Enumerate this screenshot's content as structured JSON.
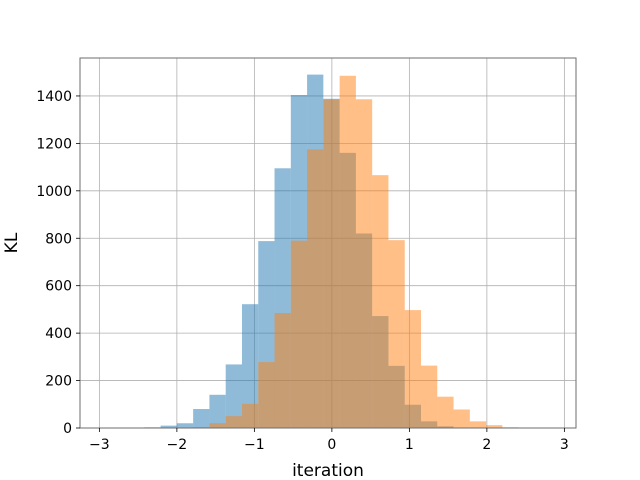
{
  "chart_data": {
    "type": "histogram",
    "title": "",
    "xlabel": "iteration",
    "ylabel": "KL",
    "xlim": [
      -3.25,
      3.15
    ],
    "ylim": [
      0,
      1560
    ],
    "xticks": [
      -3,
      -2,
      -1,
      0,
      1,
      2,
      3
    ],
    "xtick_labels": [
      "−3",
      "−2",
      "−1",
      "0",
      "1",
      "2",
      "3"
    ],
    "yticks": [
      0,
      200,
      400,
      600,
      800,
      1000,
      1200,
      1400
    ],
    "ytick_labels": [
      "0",
      "200",
      "400",
      "600",
      "800",
      "1000",
      "1200",
      "1400"
    ],
    "grid": true,
    "series": [
      {
        "color": "#1f77b4",
        "alpha": 0.5,
        "bins": [
          {
            "x0": -2.42,
            "x1": -2.21,
            "count": 3
          },
          {
            "x0": -2.21,
            "x1": -2.0,
            "count": 10
          },
          {
            "x0": -2.0,
            "x1": -1.79,
            "count": 20
          },
          {
            "x0": -1.79,
            "x1": -1.58,
            "count": 80
          },
          {
            "x0": -1.58,
            "x1": -1.37,
            "count": 140
          },
          {
            "x0": -1.37,
            "x1": -1.16,
            "count": 268
          },
          {
            "x0": -1.16,
            "x1": -0.95,
            "count": 522
          },
          {
            "x0": -0.95,
            "x1": -0.74,
            "count": 788
          },
          {
            "x0": -0.74,
            "x1": -0.53,
            "count": 1095
          },
          {
            "x0": -0.53,
            "x1": -0.32,
            "count": 1404
          },
          {
            "x0": -0.32,
            "x1": -0.11,
            "count": 1490
          },
          {
            "x0": -0.11,
            "x1": 0.1,
            "count": 1388
          },
          {
            "x0": 0.1,
            "x1": 0.31,
            "count": 1160
          },
          {
            "x0": 0.31,
            "x1": 0.52,
            "count": 820
          },
          {
            "x0": 0.52,
            "x1": 0.73,
            "count": 472
          },
          {
            "x0": 0.73,
            "x1": 0.94,
            "count": 262
          },
          {
            "x0": 0.94,
            "x1": 1.15,
            "count": 98
          },
          {
            "x0": 1.15,
            "x1": 1.36,
            "count": 28
          },
          {
            "x0": 1.36,
            "x1": 1.57,
            "count": 7
          },
          {
            "x0": 1.57,
            "x1": 1.78,
            "count": 2
          }
        ]
      },
      {
        "color": "#ff7f0e",
        "alpha": 0.5,
        "bins": [
          {
            "x0": -1.79,
            "x1": -1.58,
            "count": 4
          },
          {
            "x0": -1.58,
            "x1": -1.37,
            "count": 20
          },
          {
            "x0": -1.37,
            "x1": -1.16,
            "count": 50
          },
          {
            "x0": -1.16,
            "x1": -0.95,
            "count": 102
          },
          {
            "x0": -0.95,
            "x1": -0.74,
            "count": 278
          },
          {
            "x0": -0.74,
            "x1": -0.53,
            "count": 485
          },
          {
            "x0": -0.53,
            "x1": -0.32,
            "count": 790
          },
          {
            "x0": -0.32,
            "x1": -0.11,
            "count": 1175
          },
          {
            "x0": -0.11,
            "x1": 0.1,
            "count": 1385
          },
          {
            "x0": 0.1,
            "x1": 0.31,
            "count": 1485
          },
          {
            "x0": 0.31,
            "x1": 0.52,
            "count": 1386
          },
          {
            "x0": 0.52,
            "x1": 0.73,
            "count": 1066
          },
          {
            "x0": 0.73,
            "x1": 0.94,
            "count": 792
          },
          {
            "x0": 0.94,
            "x1": 1.15,
            "count": 497
          },
          {
            "x0": 1.15,
            "x1": 1.36,
            "count": 263
          },
          {
            "x0": 1.36,
            "x1": 1.57,
            "count": 132
          },
          {
            "x0": 1.57,
            "x1": 1.78,
            "count": 78
          },
          {
            "x0": 1.78,
            "x1": 1.99,
            "count": 28
          },
          {
            "x0": 1.99,
            "x1": 2.2,
            "count": 12
          },
          {
            "x0": 2.2,
            "x1": 2.41,
            "count": 3
          }
        ]
      }
    ]
  }
}
